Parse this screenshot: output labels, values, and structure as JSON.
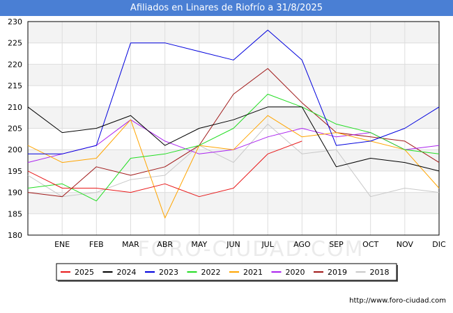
{
  "chart_data": {
    "type": "line",
    "title": "Afiliados en Linares de Riofrío a 31/8/2025",
    "xlabel": "",
    "ylabel": "",
    "categories": [
      "",
      "ENE",
      "FEB",
      "MAR",
      "ABR",
      "MAY",
      "JUN",
      "JUL",
      "AGO",
      "SEP",
      "OCT",
      "NOV",
      "DIC"
    ],
    "ylim": [
      180,
      230
    ],
    "yticks": [
      180,
      185,
      190,
      195,
      200,
      205,
      210,
      215,
      220,
      225,
      230
    ],
    "grid": true,
    "legend_position": "bottom",
    "series": [
      {
        "name": "2025",
        "color": "#e8191a",
        "values": [
          195,
          191,
          191,
          190,
          192,
          189,
          191,
          199,
          202,
          null,
          null,
          null,
          null
        ]
      },
      {
        "name": "2024",
        "color": "#000000",
        "values": [
          210,
          204,
          205,
          208,
          201,
          205,
          207,
          210,
          210,
          196,
          198,
          197,
          195
        ]
      },
      {
        "name": "2023",
        "color": "#0000dd",
        "values": [
          199,
          199,
          201,
          225,
          225,
          223,
          221,
          228,
          221,
          201,
          202,
          205,
          210
        ]
      },
      {
        "name": "2022",
        "color": "#22dd22",
        "values": [
          191,
          192,
          188,
          198,
          199,
          201,
          205,
          213,
          210,
          206,
          204,
          200,
          199
        ]
      },
      {
        "name": "2021",
        "color": "#ffa500",
        "values": [
          201,
          197,
          198,
          207,
          184,
          201,
          200,
          208,
          203,
          204,
          202,
          200,
          191
        ]
      },
      {
        "name": "2020",
        "color": "#aa22ee",
        "values": [
          197,
          199,
          201,
          207,
          202,
          199,
          200,
          203,
          205,
          203,
          204,
          200,
          201
        ]
      },
      {
        "name": "2019",
        "color": "#a01818",
        "values": [
          190,
          189,
          196,
          194,
          196,
          201,
          213,
          219,
          211,
          204,
          203,
          202,
          197
        ]
      },
      {
        "name": "2018",
        "color": "#c8c8c8",
        "values": [
          194,
          189,
          190,
          193,
          194,
          201,
          197,
          206,
          199,
          200,
          189,
          191,
          190
        ]
      }
    ]
  },
  "watermark": "FORO-CIUDAD.COM",
  "source": "http://www.foro-ciudad.com"
}
